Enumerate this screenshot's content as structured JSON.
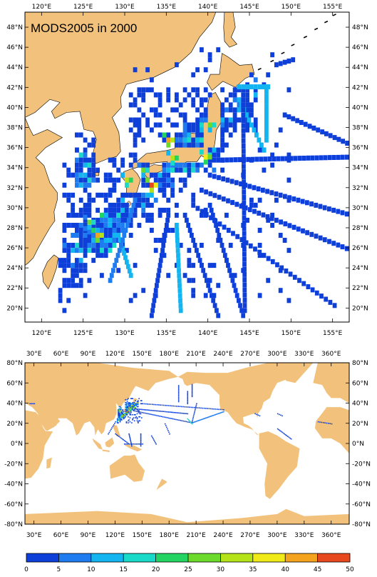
{
  "title": "MODS2005 in 2000",
  "colors": {
    "land": "#F2C27C",
    "ocean": "#FFFFFF",
    "frame": "#000000"
  },
  "regional_map": {
    "lon_labels": [
      "120°E",
      "125°E",
      "130°E",
      "135°E",
      "140°E",
      "145°E",
      "150°E",
      "155°E"
    ],
    "lat_labels": [
      "48°N",
      "46°N",
      "44°N",
      "42°N",
      "40°N",
      "38°N",
      "36°N",
      "34°N",
      "32°N",
      "30°N",
      "28°N",
      "26°N",
      "24°N",
      "22°N",
      "20°N"
    ]
  },
  "global_map": {
    "lon_labels": [
      "30°E",
      "60°E",
      "90°E",
      "120°E",
      "150°E",
      "180°E",
      "210°E",
      "240°E",
      "270°E",
      "300°E",
      "330°E",
      "360°E"
    ],
    "lat_labels": [
      "80°N",
      "60°N",
      "40°N",
      "20°N",
      "0°N",
      "-20°N",
      "-40°N",
      "-60°N",
      "-80°N"
    ]
  },
  "colorbar": {
    "tick_labels": [
      "0",
      "5",
      "10",
      "15",
      "20",
      "25",
      "30",
      "35",
      "40",
      "45",
      "50"
    ],
    "colors": [
      "#0E3FD9",
      "#1E7BF0",
      "#13B5F0",
      "#19D9C9",
      "#23D463",
      "#6CDA2B",
      "#B4E31A",
      "#EFEA18",
      "#F4A41C",
      "#E8481E"
    ]
  }
}
